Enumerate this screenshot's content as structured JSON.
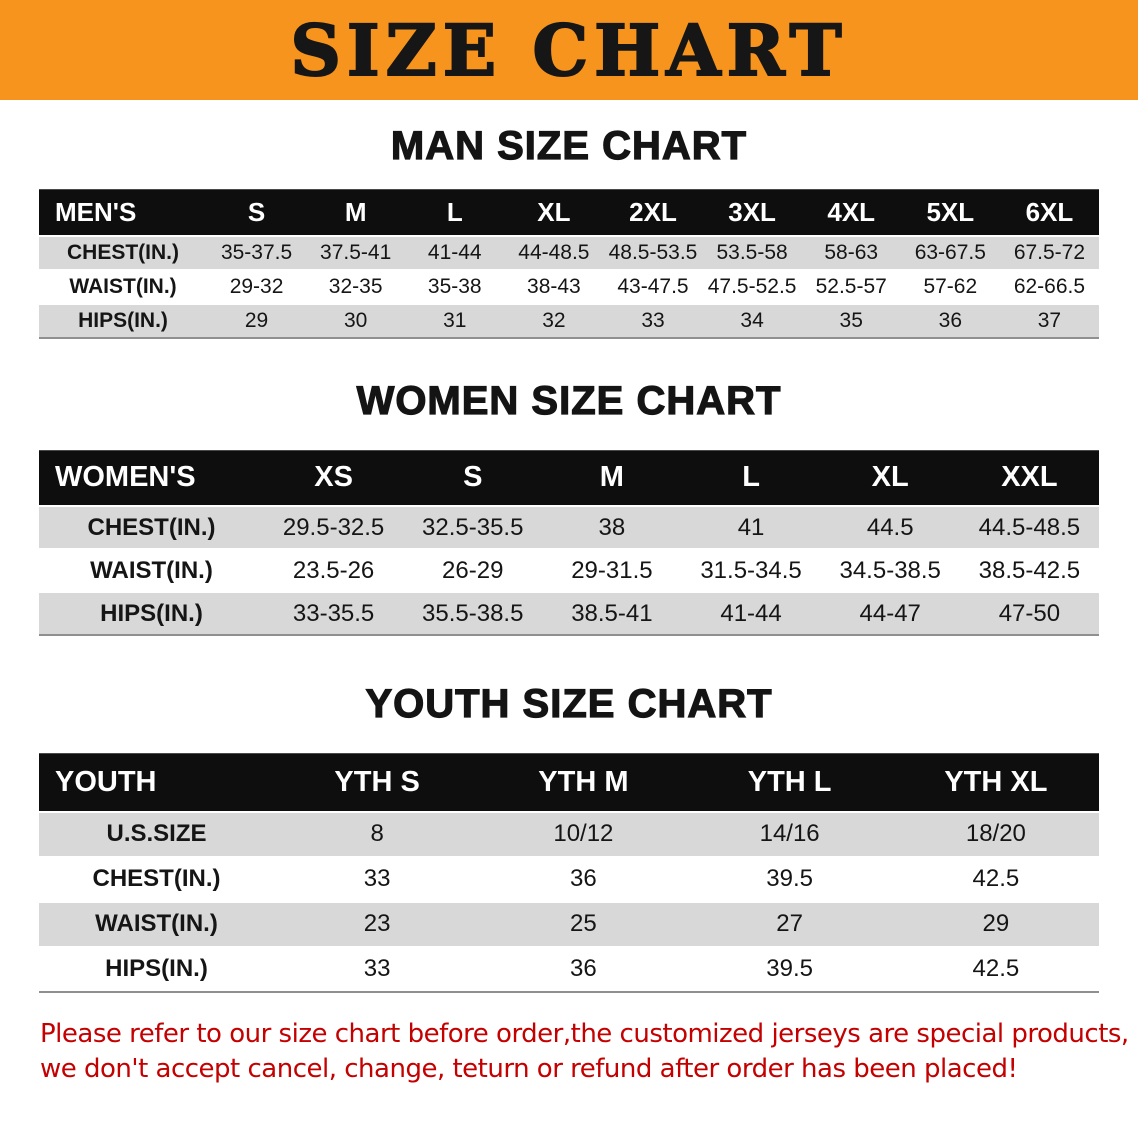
{
  "banner": {
    "title": "SIZE CHART"
  },
  "chart_data": [
    {
      "id": "men",
      "type": "table",
      "title": "MAN SIZE CHART",
      "columns": [
        "MEN'S",
        "S",
        "M",
        "L",
        "XL",
        "2XL",
        "3XL",
        "4XL",
        "5XL",
        "6XL"
      ],
      "rows": [
        [
          "CHEST(IN.)",
          "35-37.5",
          "37.5-41",
          "41-44",
          "44-48.5",
          "48.5-53.5",
          "53.5-58",
          "58-63",
          "63-67.5",
          "67.5-72"
        ],
        [
          "WAIST(IN.)",
          "29-32",
          "32-35",
          "35-38",
          "38-43",
          "43-47.5",
          "47.5-52.5",
          "52.5-57",
          "57-62",
          "62-66.5"
        ],
        [
          "HIPS(IN.)",
          "29",
          "30",
          "31",
          "32",
          "33",
          "34",
          "35",
          "36",
          "37"
        ]
      ]
    },
    {
      "id": "women",
      "type": "table",
      "title": "WOMEN SIZE CHART",
      "columns": [
        "WOMEN'S",
        "XS",
        "S",
        "M",
        "L",
        "XL",
        "XXL"
      ],
      "rows": [
        [
          "CHEST(IN.)",
          "29.5-32.5",
          "32.5-35.5",
          "38",
          "41",
          "44.5",
          "44.5-48.5"
        ],
        [
          "WAIST(IN.)",
          "23.5-26",
          "26-29",
          "29-31.5",
          "31.5-34.5",
          "34.5-38.5",
          "38.5-42.5"
        ],
        [
          "HIPS(IN.)",
          "33-35.5",
          "35.5-38.5",
          "38.5-41",
          "41-44",
          "44-47",
          "47-50"
        ]
      ]
    },
    {
      "id": "youth",
      "type": "table",
      "title": "YOUTH SIZE CHART",
      "columns": [
        "YOUTH",
        "YTH S",
        "YTH M",
        "YTH L",
        "YTH XL"
      ],
      "rows": [
        [
          "U.S.SIZE",
          "8",
          "10/12",
          "14/16",
          "18/20"
        ],
        [
          "CHEST(IN.)",
          "33",
          "36",
          "39.5",
          "42.5"
        ],
        [
          "WAIST(IN.)",
          "23",
          "25",
          "27",
          "29"
        ],
        [
          "HIPS(IN.)",
          "33",
          "36",
          "39.5",
          "42.5"
        ]
      ]
    }
  ],
  "footer": {
    "line1": "Please refer to our size chart before order,the customized jerseys are special products,",
    "line2": "we don't accept cancel, change, teturn or refund after order has been placed!"
  },
  "colors": {
    "banner_bg": "#f7941d",
    "table_header_bg": "#0e0e0e",
    "row_stripe": "#d8d8d8",
    "notice_color": "#c40000"
  }
}
